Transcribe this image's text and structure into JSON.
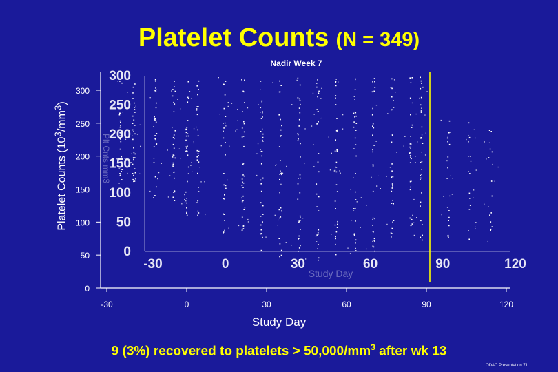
{
  "slide": {
    "title_main": "Platelet Counts",
    "title_n": "(N = 349)",
    "footer_pre": "9 (3%) recovered to platelets > 50,000/mm",
    "footer_sup": "3",
    "footer_post": "  after wk 13",
    "credit": "ODAC Presentation 71"
  },
  "chart_data": {
    "type": "scatter",
    "title": "Platelet Counts (N = 349)",
    "xlabel": "Study Day",
    "ylabel_pre": "Platelet Counts (10",
    "ylabel_sup": "3",
    "ylabel_post": "/mm",
    "ylabel_sup2": "3",
    "ylabel_end": ")",
    "xlim": [
      -30,
      120
    ],
    "ylim": [
      0,
      300
    ],
    "x_ticks": [
      "-30",
      "0",
      "30",
      "60",
      "90",
      "120"
    ],
    "y_ticks": [
      "300",
      "250",
      "200",
      "150",
      "100",
      "50",
      "0"
    ],
    "annotation": "Nadir Week 7",
    "reference_line": {
      "orientation": "vertical",
      "x": 90,
      "color": "#ffff00"
    },
    "ghost_panel": {
      "x_ticks": [
        "-30",
        "0",
        "30",
        "60",
        "90",
        "120"
      ],
      "y_ticks": [
        "300",
        "250",
        "200",
        "150",
        "100",
        "50",
        "0"
      ],
      "xlabel": "Study Day",
      "ylabel": "Plt Cnts mm3"
    },
    "point_color": "#ffffff",
    "visit_columns": [
      {
        "day": -25,
        "y_min": 130,
        "y_max": 300,
        "density": 28
      },
      {
        "day": -20,
        "y_min": 140,
        "y_max": 300,
        "density": 32
      },
      {
        "day": -12,
        "y_min": 110,
        "y_max": 300,
        "density": 22
      },
      {
        "day": -5,
        "y_min": 100,
        "y_max": 300,
        "density": 30
      },
      {
        "day": 0,
        "y_min": 90,
        "y_max": 300,
        "density": 30
      },
      {
        "day": 4,
        "y_min": 90,
        "y_max": 300,
        "density": 26
      },
      {
        "day": 14,
        "y_min": 60,
        "y_max": 300,
        "density": 26
      },
      {
        "day": 21,
        "y_min": 50,
        "y_max": 300,
        "density": 32
      },
      {
        "day": 28,
        "y_min": 30,
        "y_max": 300,
        "density": 34
      },
      {
        "day": 35,
        "y_min": 20,
        "y_max": 300,
        "density": 30
      },
      {
        "day": 42,
        "y_min": 15,
        "y_max": 300,
        "density": 36
      },
      {
        "day": 49,
        "y_min": 20,
        "y_max": 300,
        "density": 30
      },
      {
        "day": 56,
        "y_min": 25,
        "y_max": 300,
        "density": 34
      },
      {
        "day": 63,
        "y_min": 30,
        "y_max": 300,
        "density": 30
      },
      {
        "day": 70,
        "y_min": 35,
        "y_max": 300,
        "density": 30
      },
      {
        "day": 77,
        "y_min": 40,
        "y_max": 300,
        "density": 28
      },
      {
        "day": 84,
        "y_min": 45,
        "y_max": 300,
        "density": 28
      },
      {
        "day": 88,
        "y_min": 45,
        "y_max": 300,
        "density": 30
      },
      {
        "day": 98,
        "y_min": 50,
        "y_max": 250,
        "density": 16
      },
      {
        "day": 106,
        "y_min": 50,
        "y_max": 230,
        "density": 14
      },
      {
        "day": 114,
        "y_min": 50,
        "y_max": 230,
        "density": 12
      }
    ]
  }
}
